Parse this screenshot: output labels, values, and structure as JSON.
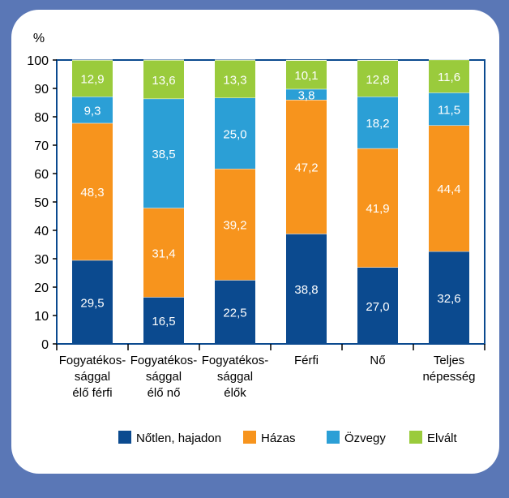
{
  "chart_data": {
    "type": "bar",
    "stacked": true,
    "ylabel": "%",
    "ylim": [
      0,
      100
    ],
    "yticks": [
      0,
      10,
      20,
      30,
      40,
      50,
      60,
      70,
      80,
      90,
      100
    ],
    "categories": [
      [
        "Fogyatékos-",
        "sággal",
        "élő férfi"
      ],
      [
        "Fogyatékos-",
        "sággal",
        "élő nő"
      ],
      [
        "Fogyatékos-",
        "sággal",
        "élők"
      ],
      [
        "Férfi"
      ],
      [
        "Nő"
      ],
      [
        "Teljes",
        "népesség"
      ]
    ],
    "series": [
      {
        "name": "Nőtlen, hajadon",
        "color": "#0b4a8f",
        "label_color": "#ffffff",
        "values": [
          29.5,
          16.5,
          22.5,
          38.8,
          27.0,
          32.6
        ],
        "labels": [
          "29,5",
          "16,5",
          "22,5",
          "38,8",
          "27,0",
          "32,6"
        ]
      },
      {
        "name": "Házas",
        "color": "#f7941d",
        "label_color": "#ffffff",
        "values": [
          48.3,
          31.4,
          39.2,
          47.2,
          41.9,
          44.4
        ],
        "labels": [
          "48,3",
          "31,4",
          "39,2",
          "47,2",
          "41,9",
          "44,4"
        ]
      },
      {
        "name": "Özvegy",
        "color": "#2b9fd6",
        "label_color": "#ffffff",
        "values": [
          9.3,
          38.5,
          25.0,
          3.8,
          18.2,
          11.5
        ],
        "labels": [
          "9,3",
          "38,5",
          "25,0",
          "3,8",
          "18,2",
          "11,5"
        ]
      },
      {
        "name": "Elvált",
        "color": "#9acb3c",
        "label_color": "#ffffff",
        "values": [
          12.9,
          13.6,
          13.3,
          10.1,
          12.8,
          11.6
        ],
        "labels": [
          "12,9",
          "13,6",
          "13,3",
          "10,1",
          "12,8",
          "11,6"
        ]
      }
    ],
    "legend_position": "bottom",
    "grid": false
  }
}
